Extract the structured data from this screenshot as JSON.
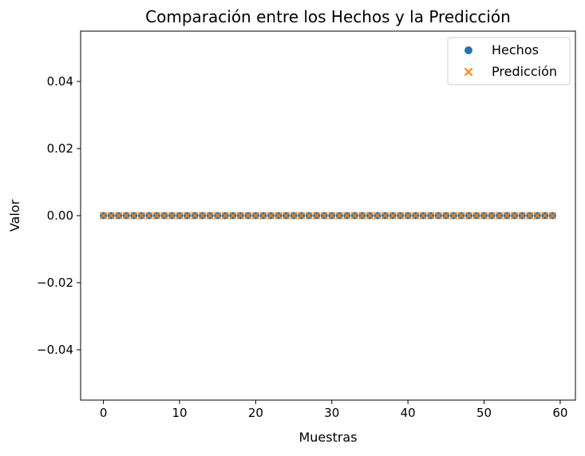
{
  "chart_data": {
    "type": "scatter",
    "title": "Comparación entre los Hechos y la Predicción",
    "xlabel": "Muestras",
    "ylabel": "Valor",
    "xlim": [
      -3,
      62
    ],
    "ylim": [
      -0.055,
      0.055
    ],
    "xticks": [
      0,
      10,
      20,
      30,
      40,
      50,
      60
    ],
    "xtick_labels": [
      "0",
      "10",
      "20",
      "30",
      "40",
      "50",
      "60"
    ],
    "yticks": [
      -0.04,
      -0.02,
      0.0,
      0.02,
      0.04
    ],
    "ytick_labels": [
      "−0.04",
      "−0.02",
      "0.00",
      "0.02",
      "0.04"
    ],
    "grid": false,
    "legend_position": "top-right",
    "series": [
      {
        "name": "Hechos",
        "marker": "circle",
        "color": "#1f77b4",
        "x": [
          0,
          1,
          2,
          3,
          4,
          5,
          6,
          7,
          8,
          9,
          10,
          11,
          12,
          13,
          14,
          15,
          16,
          17,
          18,
          19,
          20,
          21,
          22,
          23,
          24,
          25,
          26,
          27,
          28,
          29,
          30,
          31,
          32,
          33,
          34,
          35,
          36,
          37,
          38,
          39,
          40,
          41,
          42,
          43,
          44,
          45,
          46,
          47,
          48,
          49,
          50,
          51,
          52,
          53,
          54,
          55,
          56,
          57,
          58,
          59
        ],
        "y": [
          0,
          0,
          0,
          0,
          0,
          0,
          0,
          0,
          0,
          0,
          0,
          0,
          0,
          0,
          0,
          0,
          0,
          0,
          0,
          0,
          0,
          0,
          0,
          0,
          0,
          0,
          0,
          0,
          0,
          0,
          0,
          0,
          0,
          0,
          0,
          0,
          0,
          0,
          0,
          0,
          0,
          0,
          0,
          0,
          0,
          0,
          0,
          0,
          0,
          0,
          0,
          0,
          0,
          0,
          0,
          0,
          0,
          0,
          0,
          0
        ]
      },
      {
        "name": "Predicción",
        "marker": "x",
        "color": "#ff7f0e",
        "x": [
          0,
          1,
          2,
          3,
          4,
          5,
          6,
          7,
          8,
          9,
          10,
          11,
          12,
          13,
          14,
          15,
          16,
          17,
          18,
          19,
          20,
          21,
          22,
          23,
          24,
          25,
          26,
          27,
          28,
          29,
          30,
          31,
          32,
          33,
          34,
          35,
          36,
          37,
          38,
          39,
          40,
          41,
          42,
          43,
          44,
          45,
          46,
          47,
          48,
          49,
          50,
          51,
          52,
          53,
          54,
          55,
          56,
          57,
          58,
          59
        ],
        "y": [
          0,
          0,
          0,
          0,
          0,
          0,
          0,
          0,
          0,
          0,
          0,
          0,
          0,
          0,
          0,
          0,
          0,
          0,
          0,
          0,
          0,
          0,
          0,
          0,
          0,
          0,
          0,
          0,
          0,
          0,
          0,
          0,
          0,
          0,
          0,
          0,
          0,
          0,
          0,
          0,
          0,
          0,
          0,
          0,
          0,
          0,
          0,
          0,
          0,
          0,
          0,
          0,
          0,
          0,
          0,
          0,
          0,
          0,
          0,
          0
        ]
      }
    ]
  }
}
